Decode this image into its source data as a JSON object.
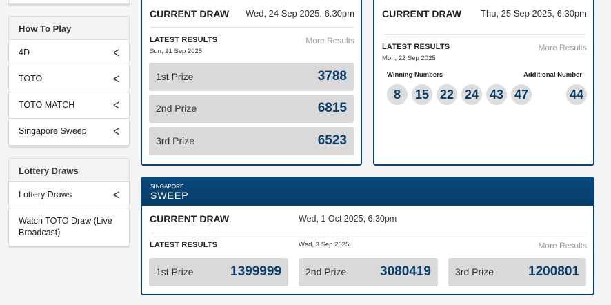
{
  "sidebar": {
    "how_to_play": {
      "title": "How To Play",
      "items": [
        "4D",
        "TOTO",
        "TOTO MATCH",
        "Singapore Sweep"
      ]
    },
    "lottery_draws": {
      "title": "Lottery Draws",
      "items": [
        "Lottery Draws",
        "Watch TOTO Draw (Live Broadcast)"
      ]
    }
  },
  "fourd": {
    "current_draw_label": "CURRENT DRAW",
    "current_draw_date": "Wed, 24 Sep 2025, 6.30pm",
    "latest_label": "LATEST RESULTS",
    "latest_date": "Sun, 21 Sep 2025",
    "more": "More Results",
    "prizes": [
      {
        "label": "1st Prize",
        "value": "3788"
      },
      {
        "label": "2nd Prize",
        "value": "6815"
      },
      {
        "label": "3rd Prize",
        "value": "6523"
      }
    ]
  },
  "toto": {
    "current_draw_label": "CURRENT DRAW",
    "current_draw_date": "Thu, 25 Sep 2025, 6.30pm",
    "latest_label": "LATEST RESULTS",
    "latest_date": "Mon, 22 Sep 2025",
    "more": "More Results",
    "winning_label": "Winning Numbers",
    "additional_label": "Additional Number",
    "winning": [
      "8",
      "15",
      "22",
      "24",
      "43",
      "47"
    ],
    "additional": "44"
  },
  "sweep": {
    "logo_top": "SINGAPORE",
    "logo_bottom": "SWEEP",
    "current_draw_label": "CURRENT DRAW",
    "current_draw_date": "Wed, 1 Oct 2025, 6.30pm",
    "latest_label": "LATEST RESULTS",
    "latest_date": "Wed, 3 Sep 2025",
    "more": "More Results",
    "prizes": [
      {
        "label": "1st Prize",
        "value": "1399999"
      },
      {
        "label": "2nd Prize",
        "value": "3080419"
      },
      {
        "label": "3rd Prize",
        "value": "1200801"
      }
    ]
  },
  "colors": {
    "brand": "#0b4471",
    "number": "#0b3e6b",
    "row_bg": "#d9d9d9"
  }
}
